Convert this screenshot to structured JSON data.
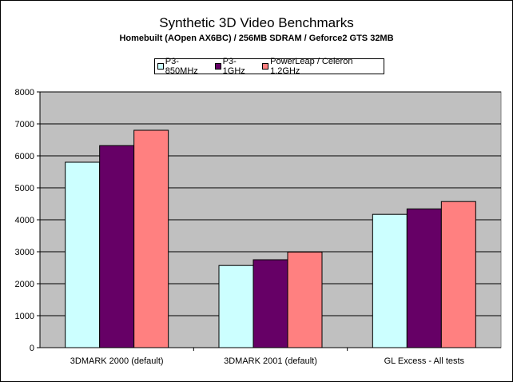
{
  "chart_data": {
    "type": "bar",
    "title": "Synthetic 3D Video Benchmarks",
    "subtitle": "Homebuilt (AOpen AX6BC) / 256MB SDRAM / Geforce2 GTS 32MB",
    "categories": [
      "3DMARK 2000 (default)",
      "3DMARK 2001 (default)",
      "GL Excess - All tests"
    ],
    "series": [
      {
        "name": "P3-850MHz",
        "color": "#ccffff",
        "values": [
          5800,
          2570,
          4170
        ]
      },
      {
        "name": "P3-1GHz",
        "color": "#660066",
        "values": [
          6320,
          2750,
          4340
        ]
      },
      {
        "name": "PowerLeap / Celeron 1.2GHz",
        "color": "#ff8080",
        "values": [
          6800,
          2990,
          4570
        ]
      }
    ],
    "ylim": [
      0,
      8000
    ],
    "yticks": [
      "0",
      "1000",
      "2000",
      "3000",
      "4000",
      "5000",
      "6000",
      "7000",
      "8000"
    ],
    "grid": true,
    "plot_background": "#c0c0c0",
    "legend_position": "top"
  }
}
